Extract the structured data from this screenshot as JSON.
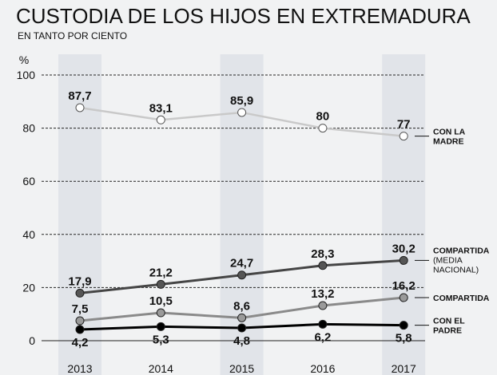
{
  "chart_data": {
    "type": "line",
    "title": "CUSTODIA DE LOS HIJOS EN EXTREMADURA",
    "subtitle": "EN TANTO POR CIENTO",
    "ylabel": "%",
    "x": [
      "2013",
      "2014",
      "2015",
      "2016",
      "2017"
    ],
    "ylim": [
      0,
      100
    ],
    "yticks": [
      "0",
      "20",
      "40",
      "60",
      "80",
      "100"
    ],
    "grid": true,
    "legend_placement": "right",
    "series": [
      {
        "name": "CON LA MADRE",
        "values": [
          87.7,
          83.1,
          85.9,
          80,
          77
        ],
        "labels": [
          "87,7",
          "83,1",
          "85,9",
          "80",
          "77"
        ],
        "color": "#c9c9c9",
        "marker": "#ffffff",
        "legend_lines": [
          "CON LA",
          "MADRE"
        ]
      },
      {
        "name": "COMPARTIDA (MEDIA NACIONAL)",
        "values": [
          17.9,
          21.2,
          24.7,
          28.3,
          30.2
        ],
        "labels": [
          "17,9",
          "21,2",
          "24,7",
          "28,3",
          "30,2"
        ],
        "color": "#454545",
        "marker": "#555555",
        "legend_lines": [
          "COMPARTIDA"
        ],
        "legend_note": [
          "(MEDIA",
          "NACIONAL)"
        ]
      },
      {
        "name": "COMPARTIDA",
        "values": [
          7.5,
          10.5,
          8.6,
          13.2,
          16.2
        ],
        "labels": [
          "7,5",
          "10,5",
          "8,6",
          "13,2",
          "16,2"
        ],
        "color": "#8a8a8a",
        "marker": "#9a9a9a",
        "legend_lines": [
          "COMPARTIDA"
        ]
      },
      {
        "name": "CON EL PADRE",
        "values": [
          4.2,
          5.3,
          4.8,
          6.2,
          5.8
        ],
        "labels": [
          "4,2",
          "5,3",
          "4,8",
          "6,2",
          "5,8"
        ],
        "color": "#000000",
        "marker": "#000000",
        "legend_lines": [
          "CON EL",
          "PADRE"
        ]
      }
    ],
    "band_color": "#e1e4e9"
  }
}
